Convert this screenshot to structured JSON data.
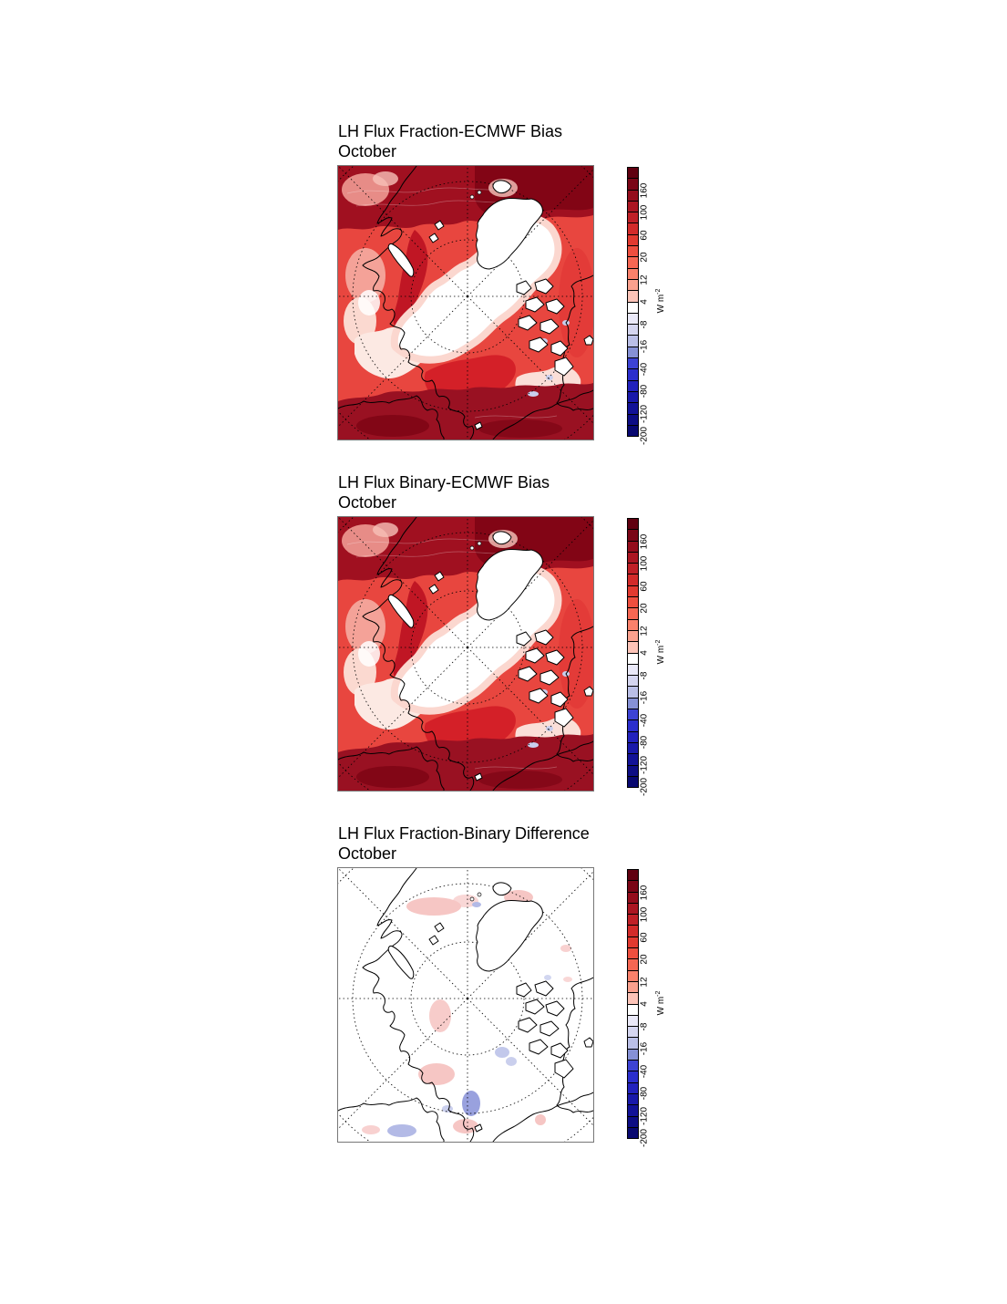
{
  "panels": [
    {
      "title": "LH Flux Fraction-ECMWF Bias",
      "subtitle": "October",
      "map_type": "bias"
    },
    {
      "title": "LH Flux Binary-ECMWF Bias",
      "subtitle": "October",
      "map_type": "bias"
    },
    {
      "title": "LH Flux Fraction-Binary Difference",
      "subtitle": "October",
      "map_type": "difference"
    }
  ],
  "colorbar": {
    "units_label": "W m",
    "units_exponent": "-2",
    "tick_labels": [
      "160",
      "100",
      "60",
      "20",
      "12",
      "4",
      "-8",
      "-16",
      "-40",
      "-80",
      "-120",
      "-200"
    ],
    "segments": [
      "#600010",
      "#7a0516",
      "#940d1c",
      "#ab1622",
      "#c02027",
      "#d32b2a",
      "#e23a30",
      "#ee4f3f",
      "#f66753",
      "#fa816b",
      "#fba18e",
      "#fdc4b8",
      "#ffffff",
      "#eae9f8",
      "#d5d6f0",
      "#babfe7",
      "#8691d6",
      "#3d43d4",
      "#2b2ecd",
      "#2222bd",
      "#1919aa",
      "#121297",
      "#0d0d84",
      "#080870"
    ]
  },
  "chart_data": [
    {
      "type": "heatmap",
      "title": "LH Flux Fraction-ECMWF Bias",
      "subtitle": "October",
      "projection": "Arctic polar stereographic map",
      "units": "W m^-2",
      "colorbar_ticks": [
        160,
        100,
        60,
        20,
        12,
        4,
        -8,
        -16,
        -40,
        -80,
        -120,
        -200
      ],
      "palette": "diverging blue-white-red, 24 discrete levels",
      "legend_position": "right vertical colorbar",
      "summary": "Large positive latent-heat-flux bias (red, ~20 to >160 W m^-2) over open ocean and coastal seas, darkest red along top and bottom land margins; near-zero (white) over the central Arctic ice pack and Greenland; small pale-blue negative patches near the Canadian archipelago."
    },
    {
      "type": "heatmap",
      "title": "LH Flux Binary-ECMWF Bias",
      "subtitle": "October",
      "projection": "Arctic polar stereographic map",
      "units": "W m^-2",
      "colorbar_ticks": [
        160,
        100,
        60,
        20,
        12,
        4,
        -8,
        -16,
        -40,
        -80,
        -120,
        -200
      ],
      "palette": "diverging blue-white-red, 24 discrete levels",
      "legend_position": "right vertical colorbar",
      "summary": "Spatial pattern nearly identical to the Fraction-ECMWF bias panel: strong positive bias over open water, near-zero over the central sea-ice pack and Greenland."
    },
    {
      "type": "heatmap",
      "title": "LH Flux Fraction-Binary Difference",
      "subtitle": "October",
      "projection": "Arctic polar stereographic map",
      "units": "W m^-2",
      "colorbar_ticks": [
        160,
        100,
        60,
        20,
        12,
        4,
        -8,
        -16,
        -40,
        -80,
        -120,
        -200
      ],
      "palette": "diverging blue-white-red, 24 discrete levels",
      "legend_position": "right vertical colorbar",
      "summary": "Differences mostly within about +/-4 W m^-2 (white); scattered faint pink positive patches over marginal seas and a few faint blue negative patches near the Bering Strait, the Canadian archipelago and the bottom-left coast."
    }
  ]
}
